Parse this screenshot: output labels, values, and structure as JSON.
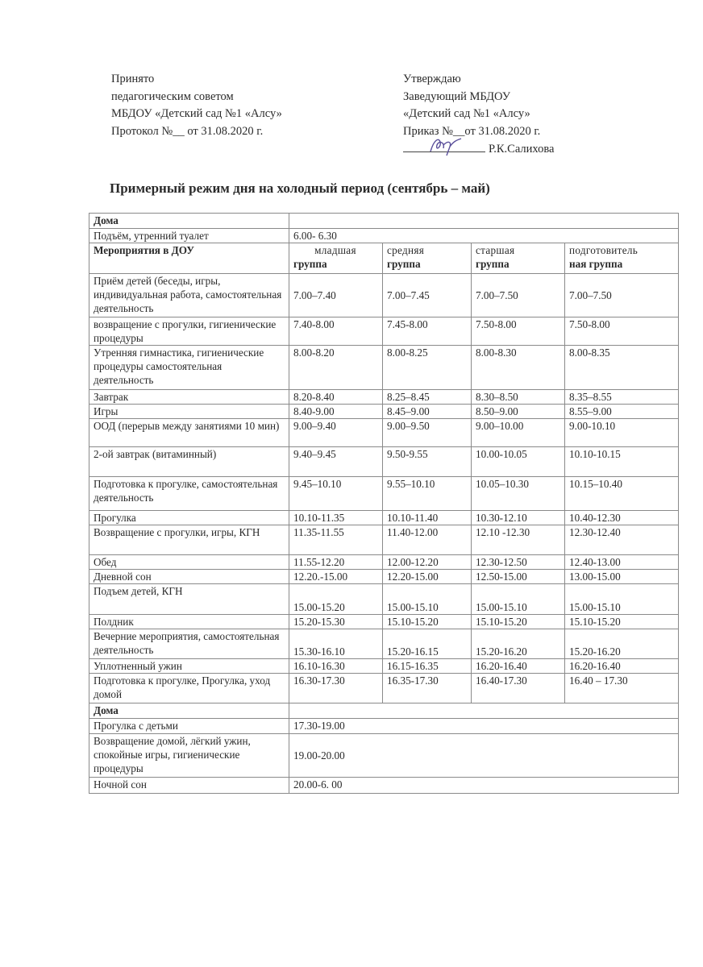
{
  "approved_left": {
    "lines": [
      "Принято",
      "педагогическим советом",
      "МБДОУ «Детский сад №1 «Алсу»",
      "Протокол №__ от 31.08.2020 г."
    ]
  },
  "approved_right": {
    "lines": [
      "Утверждаю",
      "Заведующий МБДОУ",
      "«Детский сад №1 «Алсу»",
      "Приказ №__от 31.08.2020 г."
    ],
    "signatory": "Р.К.Салихова"
  },
  "title": "Примерный режим дня на холодный период (сентябрь – май)",
  "table": {
    "home_morning": {
      "label": "Дома"
    },
    "wakeup": {
      "label": "Подъём, утренний туалет",
      "time": "6.00- 6.30"
    },
    "header": {
      "label": "Мероприятия в ДОУ",
      "groups": [
        {
          "top": "младшая",
          "bottom": "группа"
        },
        {
          "top": "средняя",
          "bottom": "группа"
        },
        {
          "top": "старшая",
          "bottom": "группа"
        },
        {
          "top": "подготовитель",
          "bottom": "ная группа"
        }
      ]
    },
    "rows": [
      {
        "label": "Приём детей (беседы, игры, индивидуальная работа, самостоятельная деятельность",
        "times": [
          "7.00–7.40",
          "7.00–7.45",
          "7.00–7.50",
          "7.00–7.50"
        ]
      },
      {
        "label": "возвращение с прогулки, гигиенические процедуры",
        "times": [
          "7.40-8.00",
          "7.45-8.00",
          "7.50-8.00",
          "7.50-8.00"
        ]
      },
      {
        "label": "Утренняя гимнастика, гигиенические процедуры самостоятельная деятельность",
        "times": [
          "8.00-8.20",
          "8.00-8.25",
          "8.00-8.30",
          "8.00-8.35"
        ]
      },
      {
        "label": "Завтрак",
        "times": [
          "8.20-8.40",
          "8.25–8.45",
          "8.30–8.50",
          "8.35–8.55"
        ]
      },
      {
        "label": "Игры",
        "times": [
          "8.40-9.00",
          "8.45–9.00",
          "8.50–9.00",
          "8.55–9.00"
        ]
      },
      {
        "label": "ООД (перерыв между занятиями 10 мин)",
        "times": [
          "9.00–9.40",
          "9.00–9.50",
          "9.00–10.00",
          "9.00-10.10"
        ]
      },
      {
        "label": "2-ой завтрак (витаминный)",
        "times": [
          "9.40–9.45",
          "9.50-9.55",
          "10.00-10.05",
          "10.10-10.15"
        ]
      },
      {
        "label": "Подготовка к прогулке, самостоятельная деятельность",
        "times": [
          "9.45–10.10",
          "9.55–10.10",
          "10.05–10.30",
          "10.15–10.40"
        ]
      },
      {
        "label": "Прогулка",
        "times": [
          "10.10-11.35",
          "10.10-11.40",
          "10.30-12.10",
          "10.40-12.30"
        ]
      },
      {
        "label": "Возвращение с прогулки, игры, КГН",
        "times": [
          "11.35-11.55",
          "11.40-12.00",
          "12.10 -12.30",
          "12.30-12.40"
        ]
      },
      {
        "label": "Обед",
        "times": [
          "11.55-12.20",
          "12.00-12.20",
          "12.30-12.50",
          "12.40-13.00"
        ]
      },
      {
        "label": "Дневной сон",
        "times": [
          "12.20.-15.00",
          "12.20-15.00",
          "12.50-15.00",
          "13.00-15.00"
        ]
      },
      {
        "label": "Подъем детей, КГН",
        "times": [
          "15.00-15.20",
          "15.00-15.10",
          "15.00-15.10",
          "15.00-15.10"
        ]
      },
      {
        "label": "Полдник",
        "times": [
          "15.20-15.30",
          "15.10-15.20",
          "15.10-15.20",
          "15.10-15.20"
        ]
      },
      {
        "label": "Вечерние мероприятия, самостоятельная деятельность",
        "times": [
          "15.30-16.10",
          "15.20-16.15",
          "15.20-16.20",
          "15.20-16.20"
        ]
      },
      {
        "label": "Уплотненный ужин",
        "times": [
          "16.10-16.30",
          "16.15-16.35",
          "16.20-16.40",
          "16.20-16.40"
        ]
      },
      {
        "label": "Подготовка к прогулке, Прогулка, уход домой",
        "times": [
          "16.30-17.30",
          "16.35-17.30",
          "16.40-17.30",
          "16.40 – 17.30"
        ]
      }
    ],
    "home_evening": {
      "label": "Дома"
    },
    "evening_rows": [
      {
        "label": "Прогулка с детьми",
        "time": "17.30-19.00"
      },
      {
        "label": "Возвращение домой, лёгкий ужин, спокойные игры, гигиенические процедуры",
        "time": "19.00-20.00"
      },
      {
        "label": "Ночной сон",
        "time": "20.00-6. 00"
      }
    ]
  }
}
